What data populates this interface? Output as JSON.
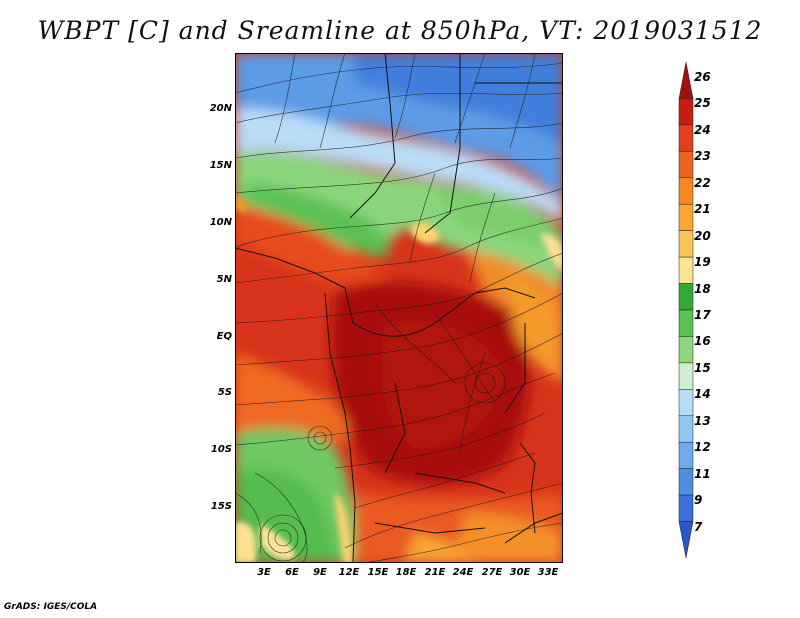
{
  "title": "WBPT [C] and Sreamline at 850hPa, VT: 2019031512",
  "footer": "GrADS: IGES/COLA",
  "map": {
    "variable": "Wet-bulb potential temperature",
    "units": "C",
    "level": "850hPa",
    "valid_time": "2019031512",
    "lat_labels": [
      "20N",
      "15N",
      "10N",
      "5N",
      "EQ",
      "5S",
      "10S",
      "15S"
    ],
    "lon_labels": [
      "3E",
      "6E",
      "9E",
      "12E",
      "15E",
      "18E",
      "21E",
      "24E",
      "27E",
      "30E",
      "33E"
    ]
  },
  "legend": {
    "labels": [
      "26",
      "25",
      "24",
      "23",
      "22",
      "21",
      "20",
      "19",
      "18",
      "17",
      "16",
      "15",
      "14",
      "13",
      "12",
      "11",
      "9",
      "7"
    ],
    "colors": [
      "#a50f0f",
      "#c81e12",
      "#e0401a",
      "#ee6422",
      "#f5881e",
      "#f9a833",
      "#fcc55c",
      "#fde490",
      "#33a836",
      "#5cc154",
      "#8dd87c",
      "#cdeed0",
      "#b6dcf7",
      "#92c6f2",
      "#6eaaec",
      "#4e8ee4",
      "#3a70d8",
      "#2b55c8"
    ]
  }
}
